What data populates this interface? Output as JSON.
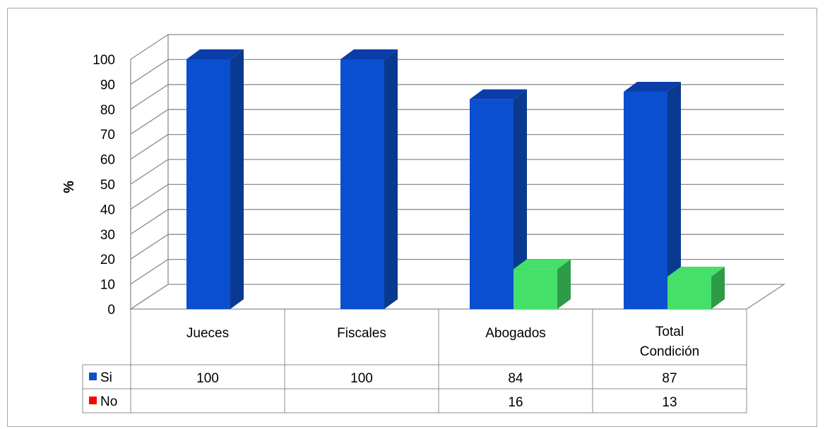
{
  "chart_data": {
    "type": "bar",
    "ylabel": "%",
    "ylim": [
      0,
      100
    ],
    "yticks": [
      0,
      10,
      20,
      30,
      40,
      50,
      60,
      70,
      80,
      90,
      100
    ],
    "grid": true,
    "categories": [
      [
        "Jueces"
      ],
      [
        "Fiscales"
      ],
      [
        "Abogados"
      ],
      [
        "Total",
        "Condición"
      ]
    ],
    "series": [
      {
        "name": "Si",
        "values": [
          100,
          100,
          84,
          87
        ],
        "labels": [
          "100",
          "100",
          "84",
          "87"
        ],
        "color": "#0a4fcf"
      },
      {
        "name": "No",
        "values": [
          null,
          null,
          16,
          13
        ],
        "labels": [
          "",
          "",
          "16",
          "13"
        ],
        "color": "#ff0000"
      }
    ],
    "bar_colors": {
      "no_front": "#44e06a",
      "no_side": "#2e9b47",
      "si_side": "#0a3a8f",
      "si_top": "#0b3da8"
    }
  }
}
